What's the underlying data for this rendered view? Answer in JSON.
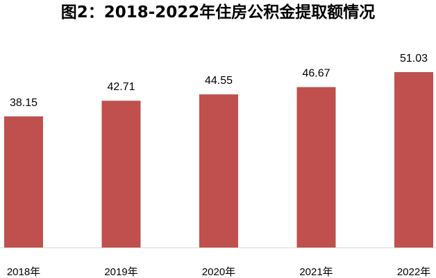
{
  "chart_data": {
    "type": "bar",
    "title": "图2：2018-2022年住房公积金提取额情况",
    "categories": [
      "2018年",
      "2019年",
      "2020年",
      "2021年",
      "2022年"
    ],
    "values": [
      38.15,
      42.71,
      44.55,
      46.67,
      51.03
    ],
    "value_labels": [
      "38.15",
      "42.71",
      "44.55",
      "46.67",
      "51.03"
    ],
    "xlabel": "",
    "ylabel": "",
    "ylim": [
      0,
      51.03
    ],
    "grid": false,
    "legend": "none",
    "colors": {
      "bar": "#C0504D",
      "axis": "#D9D9D9",
      "text": "#000000"
    }
  }
}
